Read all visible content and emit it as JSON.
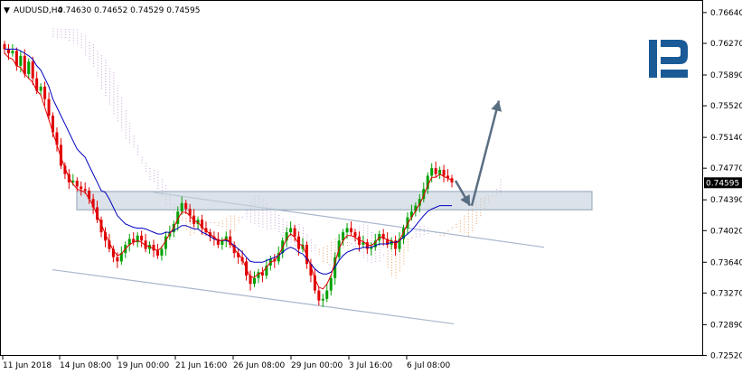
{
  "header": {
    "symbol": "AUDUSD,H4",
    "ohlc": "0.74630 0.74652 0.74529 0.74595",
    "menu_glyph": "▼"
  },
  "current_price_label": "0.74595",
  "logo": {
    "icon": "roboforex-r-logo",
    "color": "#1a5a96"
  },
  "chart_data": {
    "type": "candlestick",
    "title": "",
    "xlabel": "",
    "ylabel": "",
    "ylim": [
      0.72525,
      0.7678
    ],
    "yticks": [
      "0.76640",
      "0.76270",
      "0.75890",
      "0.75520",
      "0.75140",
      "0.74770",
      "0.74390",
      "0.74020",
      "0.73640",
      "0.73270",
      "0.72890",
      "0.72520"
    ],
    "xticks": [
      "11 Jun 2018",
      "14 Jun 08:00",
      "19 Jun 00:00",
      "21 Jun 16:00",
      "26 Jun 08:00",
      "29 Jun 00:00",
      "3 Jul 16:00",
      "6 Jul 08:00"
    ],
    "grid": false,
    "colors": {
      "up": "#00a000",
      "down": "#e00000",
      "tenkan": "#e00000",
      "kijun": "#0000c0",
      "cloud_bull": "#e89a5a",
      "cloud_bear": "#c8a0d8",
      "support": "#a8b8cc",
      "arrow": "#5a6e82"
    },
    "close_series": [
      0.762,
      0.7615,
      0.7618,
      0.76,
      0.7612,
      0.759,
      0.7605,
      0.7585,
      0.757,
      0.7575,
      0.756,
      0.754,
      0.752,
      0.7505,
      0.748,
      0.747,
      0.746,
      0.7462,
      0.7455,
      0.7452,
      0.745,
      0.744,
      0.743,
      0.7415,
      0.74,
      0.739,
      0.738,
      0.737,
      0.7365,
      0.7375,
      0.7385,
      0.7392,
      0.7388,
      0.7396,
      0.739,
      0.738,
      0.7385,
      0.7378,
      0.7372,
      0.738,
      0.7395,
      0.74,
      0.741,
      0.7425,
      0.7435,
      0.7428,
      0.742,
      0.741,
      0.7415,
      0.7405,
      0.74,
      0.7395,
      0.7392,
      0.7385,
      0.739,
      0.7395,
      0.7385,
      0.7375,
      0.737,
      0.7365,
      0.7348,
      0.7338,
      0.7345,
      0.7352,
      0.7348,
      0.736,
      0.7368,
      0.7365,
      0.7375,
      0.739,
      0.74,
      0.7405,
      0.7395,
      0.738,
      0.7385,
      0.7362,
      0.7348,
      0.733,
      0.7318,
      0.732,
      0.733,
      0.7345,
      0.737,
      0.739,
      0.74,
      0.7405,
      0.74,
      0.7395,
      0.7385,
      0.7388,
      0.738,
      0.7382,
      0.739,
      0.7398,
      0.7392,
      0.7385,
      0.739,
      0.738,
      0.7392,
      0.7405,
      0.7418,
      0.7425,
      0.7432,
      0.744,
      0.7452,
      0.7468,
      0.7477,
      0.747,
      0.7475,
      0.7468,
      0.7465,
      0.746
    ],
    "tenkan_series": [
      0.7615,
      0.761,
      0.7608,
      0.76,
      0.7598,
      0.759,
      0.7585,
      0.758,
      0.757,
      0.7565,
      0.755,
      0.7535,
      0.752,
      0.7505,
      0.749,
      0.7478,
      0.7465,
      0.7458,
      0.7452,
      0.745,
      0.7448,
      0.744,
      0.7432,
      0.742,
      0.741,
      0.7398,
      0.7388,
      0.7378,
      0.7372,
      0.7374,
      0.738,
      0.7385,
      0.7388,
      0.739,
      0.7388,
      0.7384,
      0.7383,
      0.738,
      0.7378,
      0.7382,
      0.739,
      0.7398,
      0.7406,
      0.7416,
      0.7424,
      0.7424,
      0.742,
      0.7414,
      0.7412,
      0.7406,
      0.7402,
      0.7398,
      0.7394,
      0.739,
      0.739,
      0.7392,
      0.7388,
      0.738,
      0.7374,
      0.7368,
      0.7356,
      0.7346,
      0.7346,
      0.735,
      0.7352,
      0.7358,
      0.7364,
      0.7366,
      0.7372,
      0.7382,
      0.7392,
      0.7398,
      0.7394,
      0.7386,
      0.7384,
      0.7372,
      0.736,
      0.7344,
      0.7334,
      0.7332,
      0.7338,
      0.7348,
      0.7364,
      0.738,
      0.739,
      0.7396,
      0.7396,
      0.7394,
      0.739,
      0.7389,
      0.7385,
      0.7384,
      0.7388,
      0.7394,
      0.7394,
      0.739,
      0.739,
      0.7386,
      0.739,
      0.74,
      0.741,
      0.7418,
      0.7426,
      0.7434,
      0.7444,
      0.7456,
      0.7466,
      0.7466,
      0.747,
      0.7467,
      0.7465,
      0.7462
    ],
    "kijun_series": [
      0.762,
      0.762,
      0.762,
      0.762,
      0.7618,
      0.7615,
      0.7612,
      0.7608,
      0.76,
      0.7595,
      0.7585,
      0.7575,
      0.756,
      0.755,
      0.754,
      0.753,
      0.752,
      0.751,
      0.75,
      0.7495,
      0.749,
      0.748,
      0.747,
      0.746,
      0.745,
      0.7448,
      0.744,
      0.743,
      0.742,
      0.7415,
      0.741,
      0.7408,
      0.7406,
      0.7405,
      0.7405,
      0.7404,
      0.7402,
      0.74,
      0.7398,
      0.7398,
      0.74,
      0.74,
      0.7402,
      0.7405,
      0.7408,
      0.7408,
      0.7406,
      0.7404,
      0.7404,
      0.74,
      0.7398,
      0.7395,
      0.7392,
      0.739,
      0.739,
      0.739,
      0.7388,
      0.7384,
      0.738,
      0.7376,
      0.737,
      0.7365,
      0.7364,
      0.7364,
      0.7364,
      0.7366,
      0.7368,
      0.737,
      0.7372,
      0.7376,
      0.738,
      0.7382,
      0.738,
      0.7376,
      0.7374,
      0.7368,
      0.7362,
      0.7356,
      0.7352,
      0.735,
      0.735,
      0.7352,
      0.7358,
      0.7366,
      0.7372,
      0.7376,
      0.7378,
      0.738,
      0.738,
      0.7382,
      0.7382,
      0.7382,
      0.7384,
      0.7386,
      0.7386,
      0.7386,
      0.7388,
      0.7388,
      0.739,
      0.7394,
      0.7398,
      0.7402,
      0.7408,
      0.7414,
      0.742,
      0.7425,
      0.7428,
      0.743,
      0.7432,
      0.7432,
      0.7432,
      0.7432
    ]
  }
}
